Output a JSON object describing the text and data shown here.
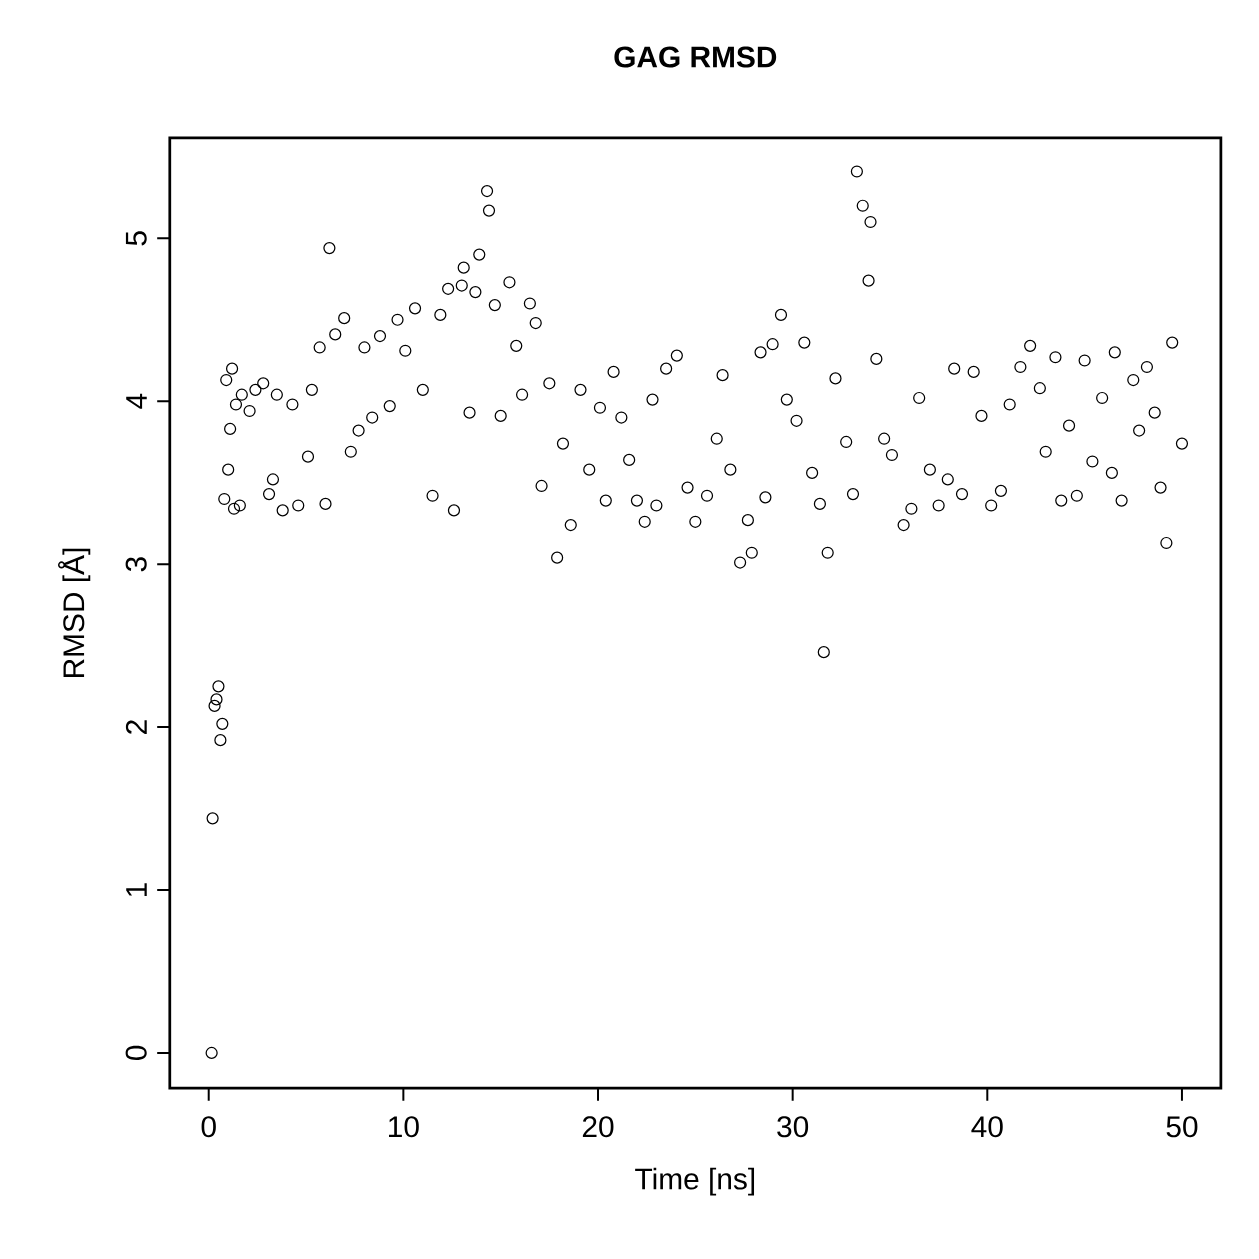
{
  "chart_data": {
    "type": "scatter",
    "title": "GAG RMSD",
    "xlabel": "Time [ns]",
    "ylabel": "RMSD [Å]",
    "xlim": [
      -2,
      52
    ],
    "ylim": [
      -0.216,
      5.616
    ],
    "xticks": [
      0,
      10,
      20,
      30,
      40,
      50
    ],
    "yticks": [
      0,
      1,
      2,
      3,
      4,
      5
    ],
    "marker": "circle",
    "color": "#000000",
    "x": [
      0.15,
      0.2,
      0.3,
      0.4,
      0.5,
      0.6,
      0.7,
      0.8,
      0.9,
      1.0,
      1.1,
      1.2,
      1.3,
      1.4,
      1.6,
      1.7,
      2.1,
      2.4,
      2.8,
      3.1,
      3.3,
      3.5,
      3.8,
      4.3,
      4.6,
      5.1,
      5.3,
      5.7,
      6.0,
      6.2,
      6.5,
      6.96,
      7.3,
      7.7,
      8.0,
      8.4,
      8.8,
      9.3,
      9.7,
      10.1,
      10.6,
      11.0,
      11.5,
      11.9,
      12.3,
      12.6,
      13.0,
      13.1,
      13.4,
      13.7,
      13.9,
      14.3,
      14.4,
      14.7,
      15.0,
      15.45,
      15.8,
      16.1,
      16.5,
      16.8,
      17.1,
      17.5,
      17.9,
      18.2,
      18.6,
      19.1,
      19.55,
      20.1,
      20.4,
      20.8,
      21.2,
      21.6,
      22.0,
      22.4,
      22.8,
      23.0,
      23.5,
      24.05,
      24.6,
      25.0,
      25.6,
      26.1,
      26.4,
      26.8,
      27.3,
      27.7,
      27.9,
      28.35,
      28.6,
      28.97,
      29.4,
      29.7,
      30.2,
      30.6,
      31.0,
      31.4,
      31.6,
      31.8,
      32.2,
      32.75,
      33.1,
      33.3,
      33.6,
      34.0,
      33.9,
      34.3,
      34.7,
      35.1,
      35.7,
      36.1,
      36.5,
      37.05,
      37.5,
      37.97,
      38.3,
      38.7,
      39.3,
      39.7,
      40.2,
      40.7,
      41.15,
      41.7,
      42.2,
      42.7,
      43.0,
      43.5,
      43.8,
      44.2,
      44.6,
      45.0,
      45.4,
      45.9,
      46.4,
      46.55,
      46.9,
      47.5,
      47.8,
      48.2,
      48.6,
      48.9,
      49.2,
      49.5,
      50.0
    ],
    "values": [
      0.0,
      1.44,
      2.13,
      2.17,
      2.25,
      1.92,
      2.02,
      3.4,
      4.13,
      3.58,
      3.83,
      4.2,
      3.34,
      3.98,
      3.36,
      4.04,
      3.94,
      4.07,
      4.11,
      3.43,
      3.52,
      4.04,
      3.33,
      3.98,
      3.36,
      3.66,
      4.07,
      4.33,
      3.37,
      4.94,
      4.41,
      4.51,
      3.69,
      3.82,
      4.33,
      3.9,
      4.4,
      3.97,
      4.5,
      4.31,
      4.57,
      4.07,
      3.42,
      4.53,
      4.69,
      3.33,
      4.71,
      4.82,
      3.93,
      4.67,
      4.9,
      5.29,
      5.17,
      4.59,
      3.91,
      4.73,
      4.34,
      4.04,
      4.6,
      4.48,
      3.48,
      4.11,
      3.04,
      3.74,
      3.24,
      4.07,
      3.58,
      3.96,
      3.39,
      4.18,
      3.9,
      3.64,
      3.39,
      3.26,
      4.01,
      3.36,
      4.2,
      4.28,
      3.47,
      3.26,
      3.42,
      3.77,
      4.16,
      3.58,
      3.01,
      3.27,
      3.07,
      4.3,
      3.41,
      4.35,
      4.53,
      4.01,
      3.88,
      4.36,
      3.56,
      3.37,
      2.46,
      3.07,
      4.14,
      3.75,
      3.43,
      5.41,
      5.2,
      5.1,
      4.74,
      4.26,
      3.77,
      3.67,
      3.24,
      3.34,
      4.02,
      3.58,
      3.36,
      3.52,
      4.2,
      3.43,
      4.18,
      3.91,
      3.36,
      3.45,
      3.98,
      4.21,
      4.34,
      4.08,
      3.69,
      4.27,
      3.39,
      3.85,
      3.42,
      4.25,
      3.63,
      4.02,
      3.56,
      4.3,
      3.39,
      4.13,
      3.82,
      4.21,
      3.93,
      3.47,
      3.13,
      4.36,
      3.74
    ]
  }
}
